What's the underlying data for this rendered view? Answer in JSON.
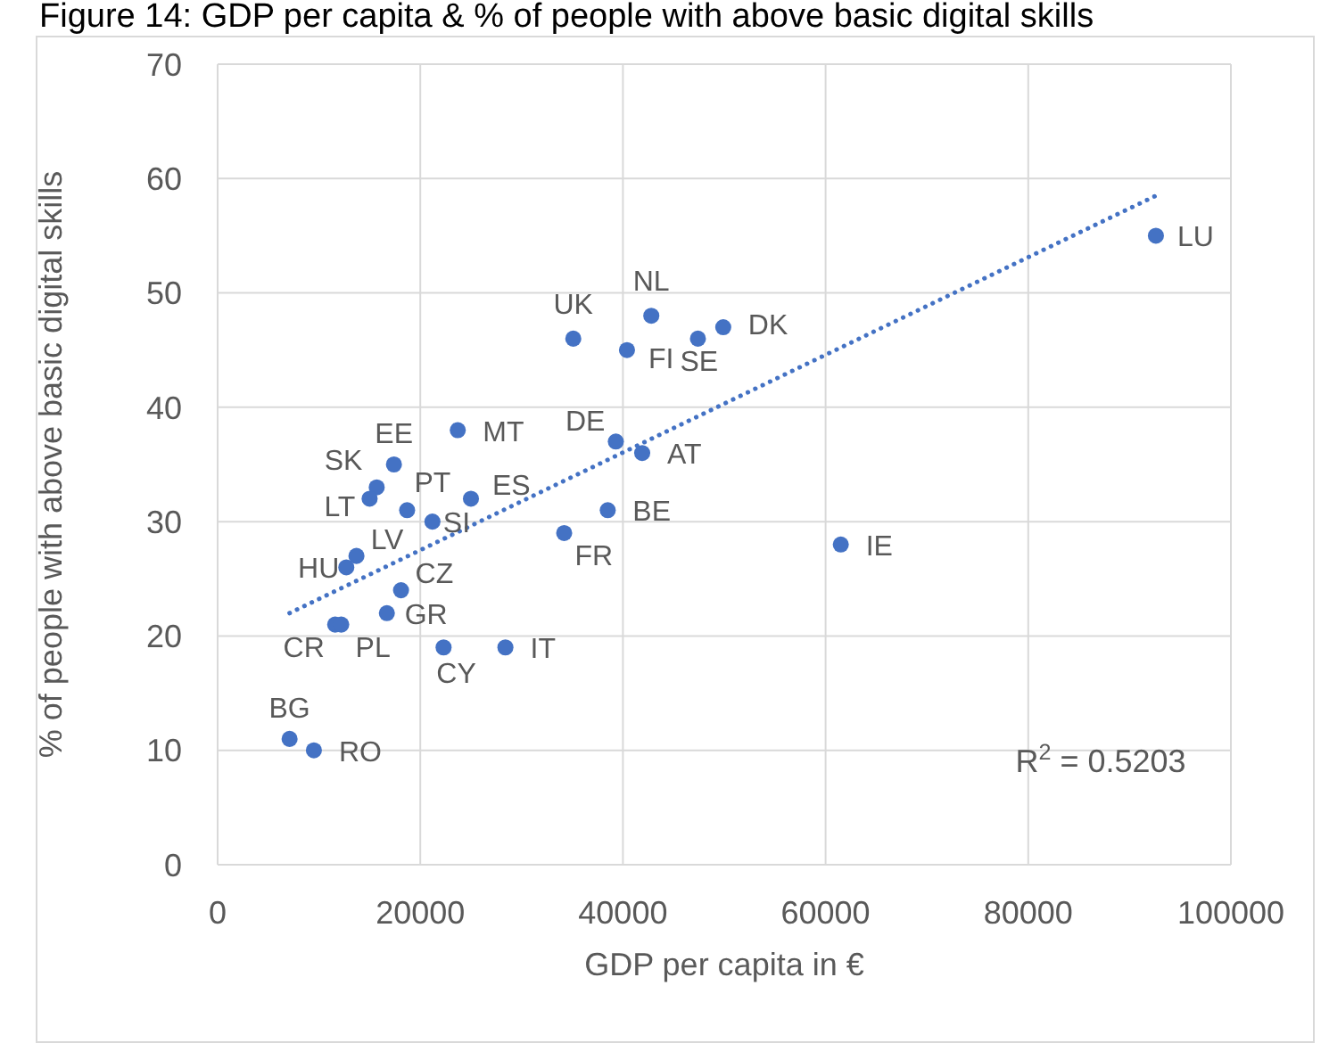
{
  "chart_data": {
    "type": "scatter",
    "title": "Figure 14: GDP per capita & % of people with above basic digital skills",
    "xlabel": "GDP per capita in €",
    "ylabel": "% of people with above basic digital skills",
    "xlim": [
      0,
      100000
    ],
    "xticks": [
      0,
      20000,
      40000,
      60000,
      80000,
      100000
    ],
    "ylim": [
      0,
      70
    ],
    "yticks": [
      0,
      10,
      20,
      30,
      40,
      50,
      60,
      70
    ],
    "grid": true,
    "series": [
      {
        "color": "#4472c4",
        "marker": "circle",
        "x": [
          92600,
          42800,
          35100,
          40400,
          47400,
          49900,
          23700,
          39300,
          41900,
          17400,
          15700,
          15000,
          18700,
          25000,
          21200,
          38500,
          34200,
          61500,
          13700,
          12700,
          18100,
          16700,
          11600,
          12200,
          22300,
          28400,
          7100,
          9500
        ],
        "values": [
          55,
          48,
          46,
          45,
          46,
          47,
          38,
          37,
          36,
          35,
          33,
          32,
          31,
          32,
          30,
          31,
          29,
          28,
          27,
          26,
          24,
          22,
          21,
          21,
          19,
          19,
          11,
          10
        ],
        "value_labels": [
          "LU",
          "NL",
          "UK",
          "FI",
          "SE",
          "DK",
          "MT",
          "DE",
          "AT",
          "EE",
          "SK",
          "LT",
          "PT",
          "ES",
          "SI",
          "BE",
          "FR",
          "IE",
          "LV",
          "HU",
          "CZ",
          "GR",
          "CR",
          "PL",
          "CY",
          "IT",
          "BG",
          "RO"
        ]
      },
      {
        "type": "line",
        "color": "#4472c4",
        "line_style": "dotted",
        "marker": "none",
        "x": [
          7100,
          92600
        ],
        "values": [
          22.0,
          58.5
        ]
      }
    ],
    "annotations": [
      "R$^{2}$ = 0.5203"
    ]
  }
}
